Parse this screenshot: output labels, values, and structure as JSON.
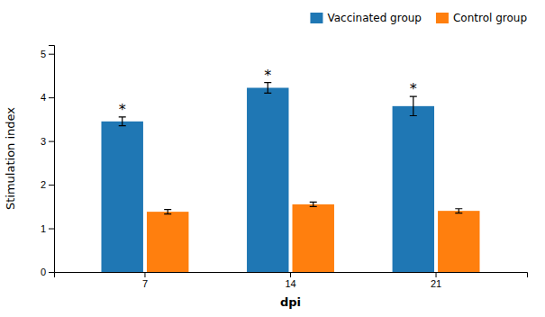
{
  "chart_data": {
    "type": "bar",
    "x_label": "dpi",
    "y_label": "Stimulation index",
    "categories": [
      "7",
      "14",
      "21"
    ],
    "series": [
      {
        "name": "Vaccinated group",
        "values": [
          3.45,
          4.22,
          3.8
        ],
        "errors": [
          0.1,
          0.12,
          0.22
        ]
      },
      {
        "name": "Control group",
        "values": [
          1.38,
          1.55,
          1.4
        ],
        "errors": [
          0.05,
          0.05,
          0.05
        ]
      }
    ],
    "ylim": [
      0,
      5.2
    ],
    "yticks": [
      0,
      1,
      2,
      3,
      4,
      5
    ],
    "grid": false,
    "legend": "upper right",
    "annotations": [
      {
        "text": "*",
        "category": "7",
        "series": "Vaccinated group"
      },
      {
        "text": "*",
        "category": "14",
        "series": "Vaccinated group"
      },
      {
        "text": "*",
        "category": "21",
        "series": "Vaccinated group"
      }
    ]
  }
}
